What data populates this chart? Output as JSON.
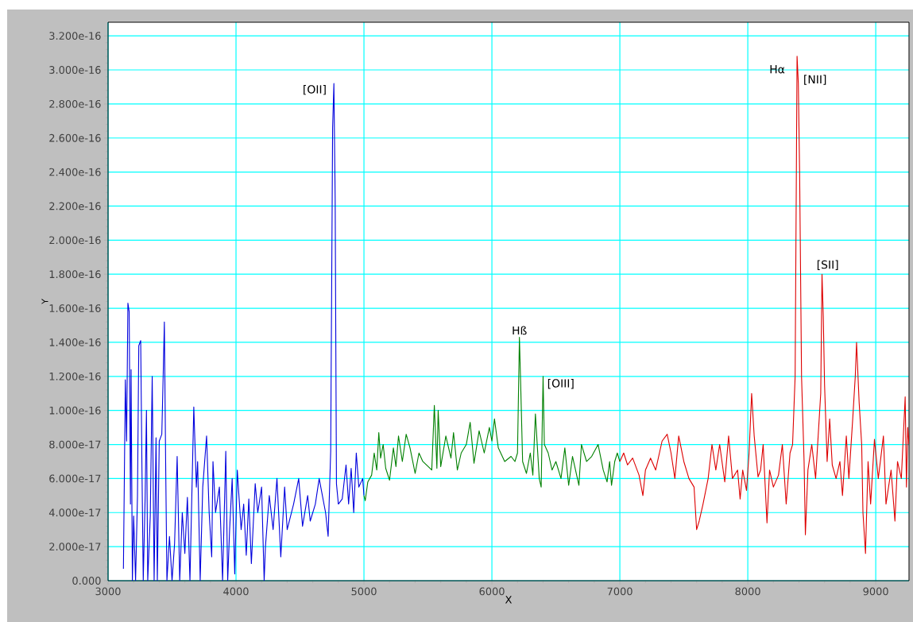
{
  "chart_data": {
    "type": "line",
    "xlabel": "X",
    "ylabel": "Y",
    "xlim": [
      3000,
      9260
    ],
    "ylim": [
      0,
      3.28e-16
    ],
    "xticks": [
      3000,
      4000,
      5000,
      6000,
      7000,
      8000,
      9000
    ],
    "yticks": [
      {
        "value": 0,
        "label": "0.000"
      },
      {
        "value": 2e-17,
        "label": "2.000e-17"
      },
      {
        "value": 4e-17,
        "label": "4.000e-17"
      },
      {
        "value": 6e-17,
        "label": "6.000e-17"
      },
      {
        "value": 8e-17,
        "label": "8.000e-17"
      },
      {
        "value": 1e-16,
        "label": "1.000e-16"
      },
      {
        "value": 1.2e-16,
        "label": "1.200e-16"
      },
      {
        "value": 1.4e-16,
        "label": "1.400e-16"
      },
      {
        "value": 1.6e-16,
        "label": "1.600e-16"
      },
      {
        "value": 1.8e-16,
        "label": "1.800e-16"
      },
      {
        "value": 2e-16,
        "label": "2.000e-16"
      },
      {
        "value": 2.2e-16,
        "label": "2.200e-16"
      },
      {
        "value": 2.4e-16,
        "label": "2.400e-16"
      },
      {
        "value": 2.6e-16,
        "label": "2.600e-16"
      },
      {
        "value": 2.8e-16,
        "label": "2.800e-16"
      },
      {
        "value": 3e-16,
        "label": "3.000e-16"
      },
      {
        "value": 3.2e-16,
        "label": "3.200e-16"
      }
    ],
    "grid": true,
    "marker": "none",
    "line_style": "solid",
    "annotations": [
      {
        "text": "[OII]",
        "x": 4765,
        "y": 2.92e-16
      },
      {
        "text": "Hß",
        "x": 6215,
        "y": 1.43e-16
      },
      {
        "text": "[OIII]",
        "x": 6400,
        "y": 1.2e-16
      },
      {
        "text": "Hα",
        "x": 8385,
        "y": 3.08e-16
      },
      {
        "text": "[NII]",
        "x": 8395,
        "y": 2.92e-16
      },
      {
        "text": "[SII]",
        "x": 8580,
        "y": 1.8e-16
      }
    ],
    "series": [
      {
        "color": "#0000dd",
        "x": [
          3120,
          3135,
          3145,
          3155,
          3165,
          3175,
          3180,
          3190,
          3200,
          3215,
          3230,
          3240,
          3255,
          3265,
          3275,
          3290,
          3300,
          3310,
          3330,
          3345,
          3360,
          3375,
          3385,
          3400,
          3420,
          3430,
          3440,
          3450,
          3460,
          3480,
          3500,
          3520,
          3540,
          3560,
          3580,
          3600,
          3620,
          3640,
          3670,
          3690,
          3700,
          3720,
          3740,
          3770,
          3790,
          3810,
          3820,
          3840,
          3870,
          3895,
          3920,
          3935,
          3950,
          3970,
          3990,
          4010,
          4040,
          4060,
          4080,
          4100,
          4120,
          4150,
          4170,
          4200,
          4220,
          4230,
          4260,
          4290,
          4320,
          4350,
          4380,
          4400,
          4450,
          4490,
          4520,
          4560,
          4580,
          4620,
          4650,
          4700,
          4720,
          4740,
          4755,
          4765,
          4775,
          4785,
          4800,
          4830,
          4860,
          4880,
          4900,
          4920,
          4940,
          4960,
          4990,
          5000
        ],
        "values": [
          7e-18,
          1.18e-16,
          8.2e-17,
          1.63e-16,
          1.58e-16,
          4.5e-17,
          1.24e-16,
          0,
          3.8e-17,
          0,
          5e-17,
          1.38e-16,
          1.41e-16,
          6.5e-17,
          0,
          5e-17,
          1e-16,
          0,
          3.8e-17,
          1.2e-16,
          0,
          8.4e-17,
          0,
          8.2e-17,
          8.6e-17,
          1.18e-16,
          1.52e-16,
          7e-17,
          0,
          2.6e-17,
          0,
          2.2e-17,
          7.3e-17,
          0,
          4e-17,
          1.6e-17,
          4.9e-17,
          0,
          1.02e-16,
          5.5e-17,
          7e-17,
          0,
          5.5e-17,
          8.5e-17,
          4e-17,
          1.4e-17,
          7e-17,
          4e-17,
          5.5e-17,
          0,
          7.6e-17,
          0,
          3e-17,
          6e-17,
          4e-18,
          6.5e-17,
          3e-17,
          4.5e-17,
          1.5e-17,
          4.8e-17,
          1e-17,
          5.7e-17,
          4e-17,
          5.5e-17,
          0,
          2e-17,
          5e-17,
          3e-17,
          6e-17,
          1.4e-17,
          5.5e-17,
          3e-17,
          4.5e-17,
          6e-17,
          3.2e-17,
          5e-17,
          3.5e-17,
          4.5e-17,
          6e-17,
          4e-17,
          2.6e-17,
          7.6e-17,
          2.66e-16,
          2.92e-16,
          2.24e-16,
          5.7e-17,
          4.5e-17,
          4.8e-17,
          6.8e-17,
          4.5e-17,
          6.6e-17,
          4e-17,
          7.5e-17,
          5.5e-17,
          6e-17,
          5e-17
        ]
      },
      {
        "color": "#008000",
        "x": [
          5000,
          5010,
          5030,
          5060,
          5080,
          5100,
          5116,
          5130,
          5150,
          5170,
          5200,
          5230,
          5250,
          5270,
          5300,
          5330,
          5360,
          5400,
          5430,
          5460,
          5530,
          5550,
          5570,
          5580,
          5600,
          5640,
          5680,
          5700,
          5730,
          5760,
          5800,
          5830,
          5860,
          5900,
          5940,
          5980,
          6000,
          6020,
          6050,
          6100,
          6150,
          6180,
          6200,
          6215,
          6225,
          6240,
          6270,
          6300,
          6320,
          6340,
          6370,
          6385,
          6400,
          6410,
          6440,
          6470,
          6500,
          6540,
          6570,
          6600,
          6630,
          6680,
          6700,
          6740,
          6780,
          6830,
          6870,
          6900,
          6920,
          6935,
          6960,
          6980,
          7000
        ],
        "values": [
          5e-17,
          4.7e-17,
          5.8e-17,
          6.2e-17,
          7.5e-17,
          6.5e-17,
          8.7e-17,
          7.2e-17,
          8e-17,
          6.6e-17,
          5.9e-17,
          7.8e-17,
          6.7e-17,
          8.5e-17,
          7e-17,
          8.6e-17,
          7.8e-17,
          6.3e-17,
          7.5e-17,
          7e-17,
          6.5e-17,
          1.03e-16,
          6.6e-17,
          1e-16,
          6.7e-17,
          8.5e-17,
          7.2e-17,
          8.7e-17,
          6.5e-17,
          7.5e-17,
          8e-17,
          9.3e-17,
          6.9e-17,
          8.8e-17,
          7.5e-17,
          9e-17,
          8.2e-17,
          9.5e-17,
          7.8e-17,
          7e-17,
          7.3e-17,
          7e-17,
          7.5e-17,
          1.43e-16,
          1.15e-16,
          7e-17,
          6.3e-17,
          7.5e-17,
          6.2e-17,
          9.8e-17,
          6e-17,
          5.5e-17,
          1.2e-16,
          8e-17,
          7.5e-17,
          6.5e-17,
          7e-17,
          6e-17,
          7.8e-17,
          5.6e-17,
          7.3e-17,
          5.6e-17,
          8e-17,
          7e-17,
          7.3e-17,
          8e-17,
          6.5e-17,
          5.8e-17,
          7e-17,
          5.6e-17,
          7e-17,
          7.5e-17,
          7e-17
        ]
      },
      {
        "color": "#dd0000",
        "x": [
          7000,
          7030,
          7060,
          7100,
          7150,
          7180,
          7200,
          7240,
          7280,
          7330,
          7370,
          7400,
          7430,
          7460,
          7500,
          7540,
          7580,
          7600,
          7620,
          7650,
          7690,
          7720,
          7750,
          7780,
          7820,
          7850,
          7880,
          7920,
          7940,
          7960,
          7990,
          8010,
          8030,
          8050,
          8080,
          8100,
          8120,
          8150,
          8170,
          8200,
          8240,
          8270,
          8300,
          8330,
          8350,
          8370,
          8385,
          8395,
          8405,
          8420,
          8440,
          8450,
          8470,
          8500,
          8530,
          8570,
          8580,
          8590,
          8600,
          8620,
          8640,
          8660,
          8690,
          8720,
          8740,
          8770,
          8790,
          8820,
          8840,
          8850,
          8870,
          8890,
          8900,
          8920,
          8940,
          8960,
          8990,
          9020,
          9060,
          9080,
          9120,
          9150,
          9170,
          9200,
          9230,
          9240,
          9250,
          9260
        ],
        "values": [
          7e-17,
          7.5e-17,
          6.8e-17,
          7.2e-17,
          6.2e-17,
          5e-17,
          6.5e-17,
          7.2e-17,
          6.5e-17,
          8.2e-17,
          8.6e-17,
          7.5e-17,
          6e-17,
          8.5e-17,
          7e-17,
          6e-17,
          5.5e-17,
          3e-17,
          3.5e-17,
          4.5e-17,
          6e-17,
          8e-17,
          6.5e-17,
          8e-17,
          5.8e-17,
          8.5e-17,
          6e-17,
          6.5e-17,
          4.8e-17,
          6.5e-17,
          5.3e-17,
          7.5e-17,
          1.1e-16,
          8.5e-17,
          6.1e-17,
          6.5e-17,
          8e-17,
          3.4e-17,
          6.5e-17,
          5.5e-17,
          6.2e-17,
          8e-17,
          4.5e-17,
          7.5e-17,
          8e-17,
          1.2e-16,
          3.08e-16,
          2.92e-16,
          2.4e-16,
          1.2e-16,
          7e-17,
          2.7e-17,
          6.5e-17,
          8e-17,
          6e-17,
          1.1e-16,
          1.8e-16,
          1.55e-16,
          1.15e-16,
          7e-17,
          9.5e-17,
          6.8e-17,
          6e-17,
          7e-17,
          5e-17,
          8.5e-17,
          6e-17,
          9.5e-17,
          1.2e-16,
          1.4e-16,
          1.05e-16,
          8e-17,
          4e-17,
          1.6e-17,
          7e-17,
          4.5e-17,
          8.3e-17,
          6e-17,
          8.5e-17,
          4.5e-17,
          6.5e-17,
          3.5e-17,
          7e-17,
          6e-17,
          1.08e-16,
          5.5e-17,
          9e-17,
          8e-17
        ]
      }
    ]
  }
}
